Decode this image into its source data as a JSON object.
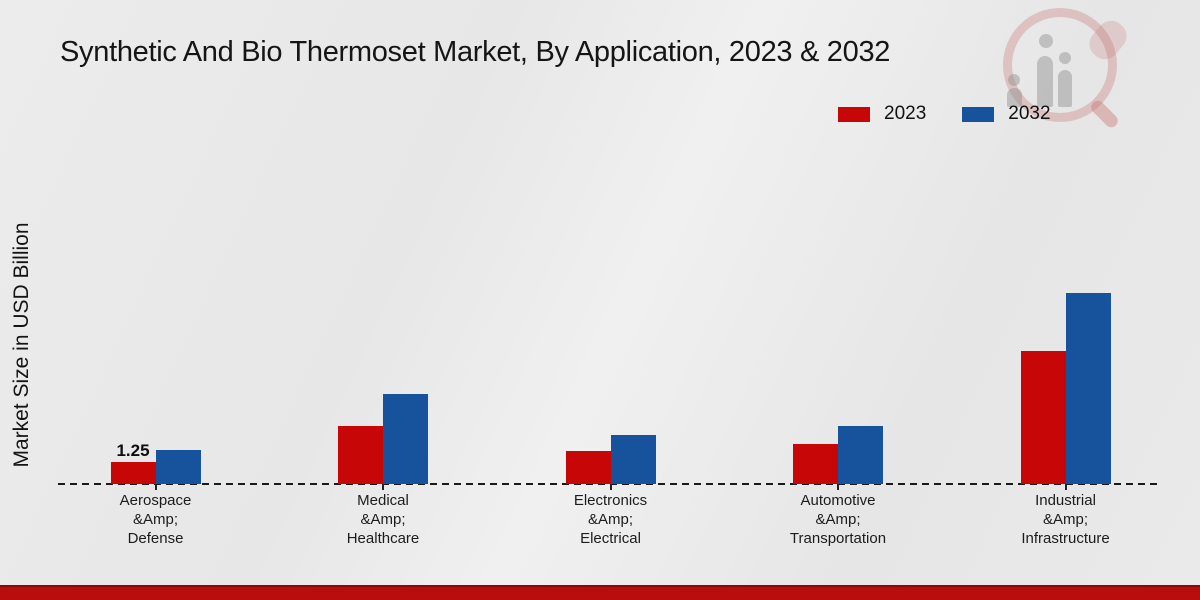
{
  "page": {
    "background_color": "#e9e9e9",
    "footer_bar_color": "#b90c0c"
  },
  "watermark": {
    "icon": "magnifier-bar-chart-logo"
  },
  "chart_data": {
    "type": "bar",
    "title": "Synthetic And Bio Thermoset Market, By Application, 2023 & 2032",
    "ylabel": "Market Size in USD Billion",
    "xlabel": "",
    "categories": [
      "Aerospace\n&Amp;\nDefense",
      "Medical\n&Amp;\nHealthcare",
      "Electronics\n&Amp;\nElectrical",
      "Automotive\n&Amp;\nTransportation",
      "Industrial\n&Amp;\nInfrastructure"
    ],
    "series": [
      {
        "name": "2023",
        "color": "#c70707",
        "values": [
          1.25,
          3.25,
          1.85,
          2.2,
          7.4
        ]
      },
      {
        "name": "2032",
        "color": "#16539c",
        "values": [
          1.9,
          5.0,
          2.75,
          3.2,
          10.6
        ]
      }
    ],
    "bar_labels": [
      {
        "series": "2023",
        "category_index": 0,
        "label": "1.25"
      }
    ],
    "ylim": [
      0,
      12
    ],
    "grid": false,
    "legend_position": "top-right",
    "baseline_style": "dashed"
  }
}
